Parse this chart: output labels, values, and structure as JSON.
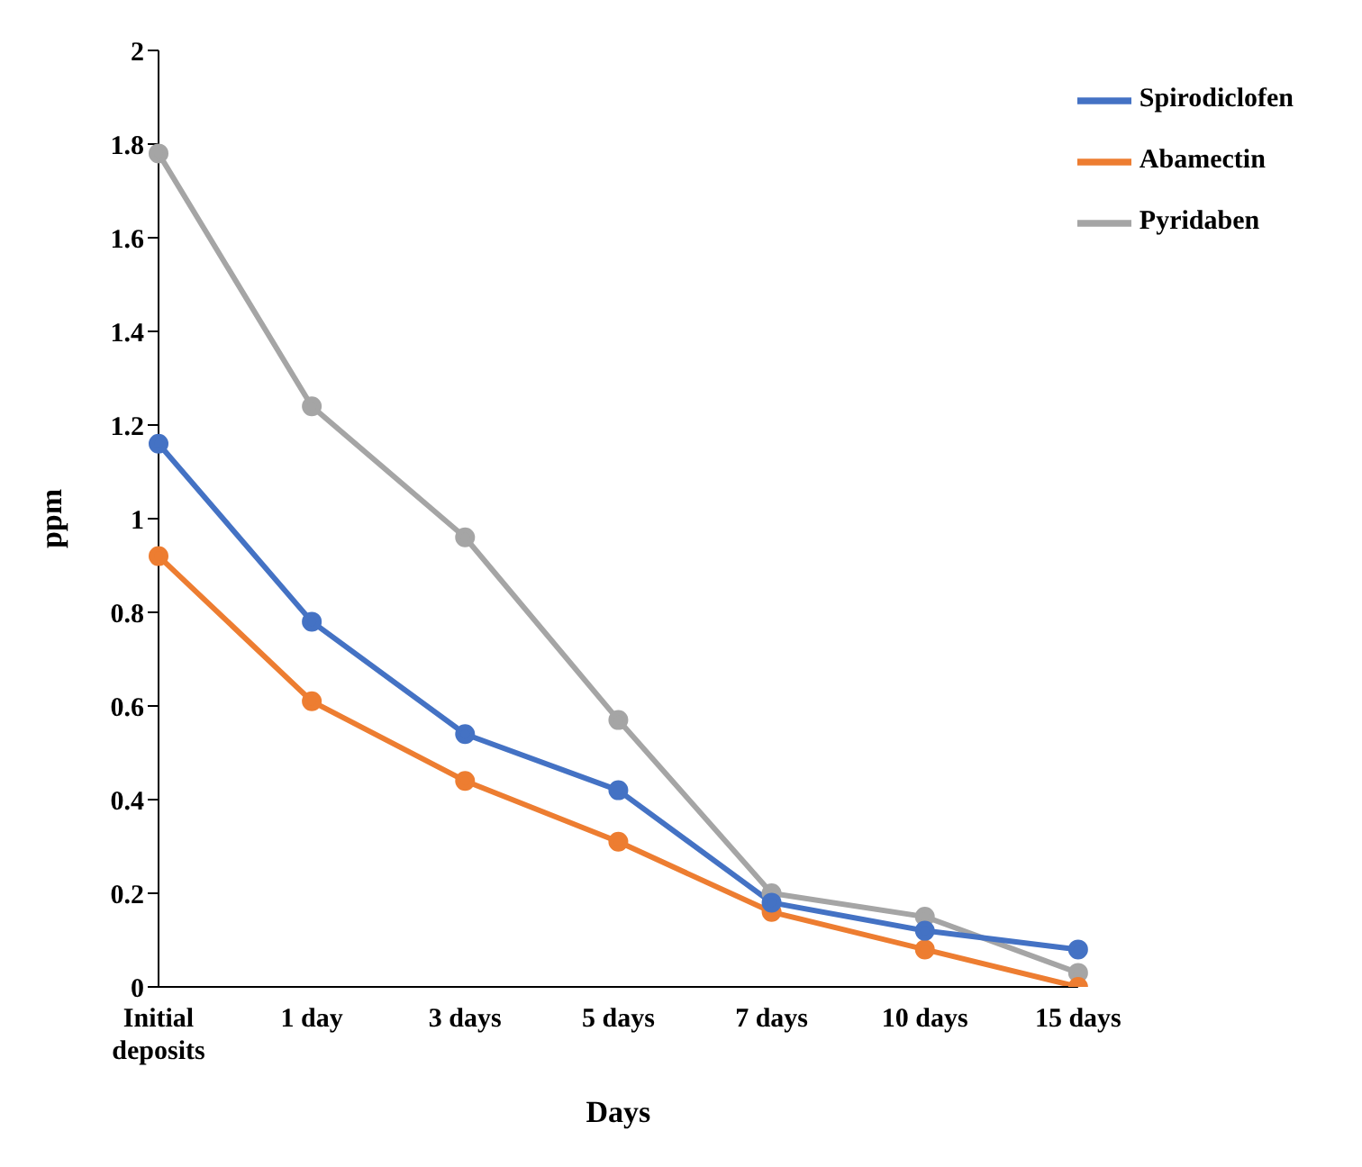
{
  "chart_data": {
    "type": "line",
    "xlabel": "Days",
    "ylabel": "ppm",
    "categories": [
      "Initial deposits",
      "1 day",
      "3 days",
      "5 days",
      "7 days",
      "10 days",
      "15 days"
    ],
    "series": [
      {
        "name": "Spirodiclofen",
        "color": "#4472c4",
        "values": [
          1.16,
          0.78,
          0.54,
          0.42,
          0.18,
          0.12,
          0.08
        ]
      },
      {
        "name": "Abamectin",
        "color": "#ed7d31",
        "values": [
          0.92,
          0.61,
          0.44,
          0.31,
          0.16,
          0.08,
          0
        ]
      },
      {
        "name": "Pyridaben",
        "color": "#a5a5a5",
        "values": [
          1.78,
          1.24,
          0.96,
          0.57,
          0.2,
          0.15,
          0.03
        ]
      }
    ],
    "ylim": [
      0,
      2
    ],
    "yticks": [
      0,
      0.2,
      0.4,
      0.6,
      0.8,
      1,
      1.2,
      1.4,
      1.6,
      1.8,
      2
    ],
    "grid": false,
    "legend": "top right",
    "marker": "circle",
    "line_style": "solid"
  }
}
